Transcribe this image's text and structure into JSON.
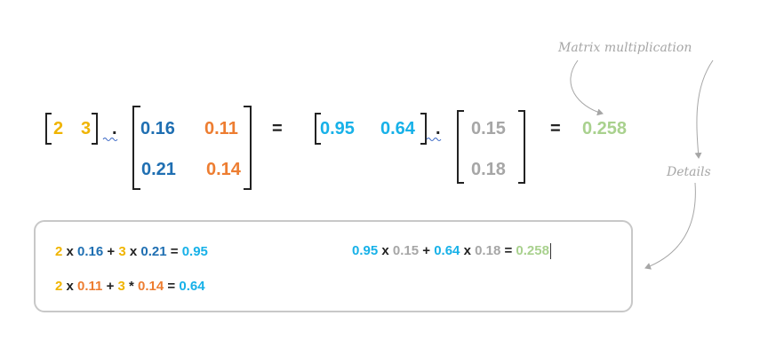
{
  "colors": {
    "yellow": "#f0b400",
    "darkblue": "#1f6fb2",
    "orange": "#ed7d31",
    "cyan": "#17b1e8",
    "gray": "#a6a6a6",
    "green": "#a9d18e",
    "black": "#222222"
  },
  "annotations": {
    "matrix_multiplication": "Matrix multiplication",
    "details": "Details"
  },
  "equation": {
    "row_vector": [
      "2",
      "3"
    ],
    "dot": ".",
    "matrix_a": [
      [
        "0.16",
        "0.11"
      ],
      [
        "0.21",
        "0.14"
      ]
    ],
    "equals": "=",
    "row_result": [
      "0.95",
      "0.64"
    ],
    "column_vector": [
      "0.15",
      "0.18"
    ],
    "final_result": "0.258"
  },
  "details": {
    "line1": [
      "2",
      " x ",
      "0.16",
      " + ",
      "3",
      " x ",
      "0.21",
      " = ",
      "0.95"
    ],
    "line2": [
      "2",
      " x ",
      "0.11",
      " + ",
      "3",
      " * ",
      "0.14",
      " = ",
      "0.64"
    ],
    "line3": [
      "0.95",
      " x ",
      "0.15",
      " + ",
      "0.64",
      " x ",
      "0.18",
      " = ",
      "0.258"
    ]
  }
}
